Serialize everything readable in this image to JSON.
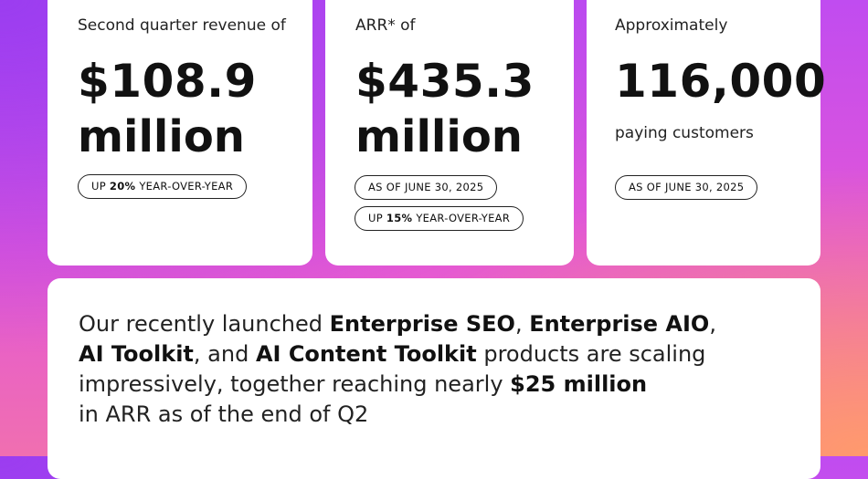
{
  "revenue": {
    "intro": "Second quarter revenue of",
    "value": "$108.9",
    "unit": "million",
    "badge_prefix": "UP ",
    "badge_highlight": "20%",
    "badge_suffix": " YEAR-OVER-YEAR"
  },
  "arr": {
    "intro": "ARR* of",
    "value": "$435.3",
    "unit": "million",
    "badge_date": "AS OF JUNE 30, 2025",
    "badge_prefix": "UP ",
    "badge_highlight": "15%",
    "badge_suffix": " YEAR-OVER-YEAR"
  },
  "customers": {
    "intro": "Approximately",
    "value": "116,000",
    "sub": "paying customers",
    "badge_date": "AS OF JUNE 30, 2025"
  },
  "enterprise": {
    "p1": "Our recently launched ",
    "b1": "Enterprise SEO",
    "p2": ", ",
    "b2": "Enterprise AIO",
    "p3": ",",
    "b3": "AI Toolkit",
    "p4": ", and ",
    "b4": "AI Content Toolkit",
    "p5": " products are scaling impressively, together reaching nearly ",
    "b5": "$25 million",
    "p6": "in ARR as of the end of Q2"
  },
  "colors": {
    "gradient_top_left": "#9b3df0",
    "gradient_mid": "#e457d6",
    "gradient_bottom_right": "#ff9a6c",
    "card_background": "#ffffff"
  }
}
